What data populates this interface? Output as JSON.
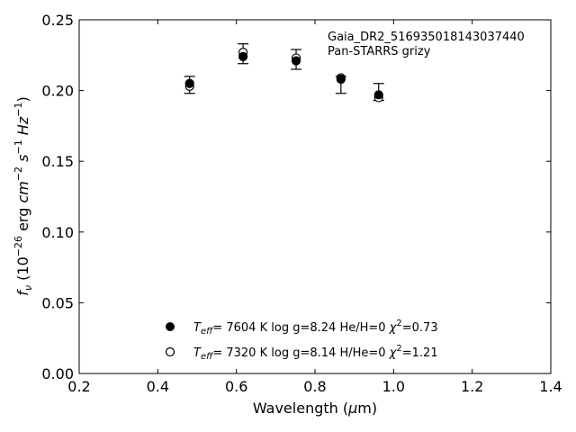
{
  "chart_data": {
    "type": "scatter",
    "annotation_lines": [
      "Gaia_DR2_516935018143037440",
      "Pan-STARRS grizy"
    ],
    "xlabel": "Wavelength (μm)",
    "ylabel": "fν (10⁻²⁶ erg cm⁻² s⁻¹ Hz⁻¹)",
    "xlim": [
      0.2,
      1.4
    ],
    "ylim": [
      0.0,
      0.25
    ],
    "xticks": [
      0.2,
      0.4,
      0.6,
      0.8,
      1.0,
      1.2,
      1.4
    ],
    "yticks": [
      0.0,
      0.05,
      0.1,
      0.15,
      0.2,
      0.25
    ],
    "xtick_labels": [
      "0.2",
      "0.4",
      "0.6",
      "0.8",
      "1.0",
      "1.2",
      "1.4"
    ],
    "ytick_labels": [
      "0.00",
      "0.05",
      "0.10",
      "0.15",
      "0.20",
      "0.25"
    ],
    "grid": false,
    "observed": {
      "x": [
        0.481,
        0.617,
        0.752,
        0.866,
        0.962
      ],
      "y": [
        0.204,
        0.226,
        0.222,
        0.204,
        0.199
      ],
      "yerr": [
        0.006,
        0.007,
        0.007,
        0.006,
        0.006
      ]
    },
    "series": [
      {
        "name": "T_eff= 7604 K log g=8.24 He/H=0 χ²=0.73",
        "marker": "filled-circle",
        "x": [
          0.481,
          0.617,
          0.752,
          0.866,
          0.962
        ],
        "y": [
          0.205,
          0.224,
          0.221,
          0.208,
          0.197
        ]
      },
      {
        "name": "T_eff= 7320 K log g=8.14 H/He=0 χ²=1.21",
        "marker": "open-circle",
        "x": [
          0.481,
          0.617,
          0.752,
          0.866,
          0.962
        ],
        "y": [
          0.203,
          0.227,
          0.223,
          0.209,
          0.195
        ]
      }
    ],
    "legend": {
      "placement": "bottom-center",
      "entries": [
        {
          "teff": "7604 K",
          "logg": "log g=8.24",
          "comp": "He/H=0",
          "chi": "=0.73"
        },
        {
          "teff": "7320 K",
          "logg": "log g=8.14",
          "comp": "H/He=0",
          "chi": "=1.21"
        }
      ]
    }
  }
}
